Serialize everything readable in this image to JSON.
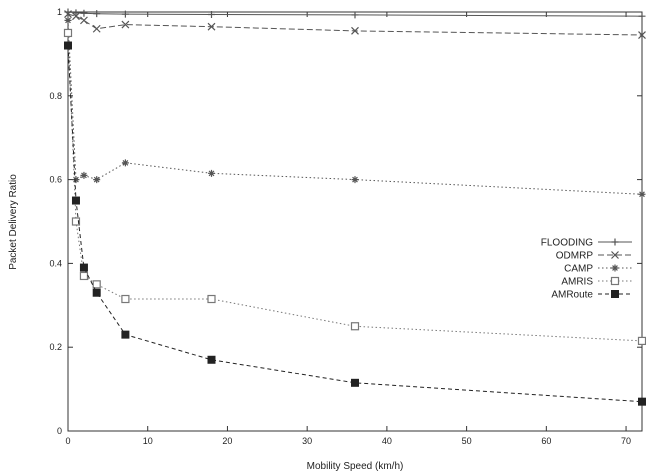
{
  "chart_data": {
    "type": "line",
    "title": "",
    "xlabel": "Mobility Speed (km/h)",
    "ylabel": "Packet Delivery Ratio",
    "xlim": [
      0,
      72
    ],
    "ylim": [
      0,
      1
    ],
    "x_ticks": [
      0,
      10,
      20,
      30,
      40,
      50,
      60,
      70
    ],
    "y_ticks": [
      0,
      0.2,
      0.4,
      0.6,
      0.8,
      1
    ],
    "y_tick_labels": [
      "0",
      "0.2",
      "0.4",
      "0.6",
      "0.8",
      "1"
    ],
    "grid": false,
    "legend_position": "right",
    "series": [
      {
        "name": "FLOODING",
        "marker": "plus",
        "dash": "solid",
        "color": "#555555",
        "x": [
          0,
          1,
          2,
          3.6,
          7.2,
          18,
          36,
          72
        ],
        "y": [
          1.0,
          0.998,
          0.997,
          0.996,
          0.995,
          0.994,
          0.993,
          0.99
        ]
      },
      {
        "name": "ODMRP",
        "marker": "cross",
        "dash": "long-dash",
        "color": "#555555",
        "x": [
          0,
          1,
          2,
          3.6,
          7.2,
          18,
          36,
          72
        ],
        "y": [
          0.995,
          0.99,
          0.98,
          0.96,
          0.97,
          0.965,
          0.955,
          0.945
        ]
      },
      {
        "name": "CAMP",
        "marker": "star",
        "dash": "dotted",
        "color": "#555555",
        "x": [
          0,
          1,
          2,
          3.6,
          7.2,
          18,
          36,
          72
        ],
        "y": [
          0.98,
          0.6,
          0.61,
          0.6,
          0.64,
          0.615,
          0.6,
          0.565
        ]
      },
      {
        "name": "AMRIS",
        "marker": "open-square",
        "dash": "dotted",
        "color": "#777777",
        "x": [
          0,
          1,
          2,
          3.6,
          7.2,
          18,
          36,
          72
        ],
        "y": [
          0.95,
          0.5,
          0.37,
          0.35,
          0.315,
          0.315,
          0.25,
          0.215
        ]
      },
      {
        "name": "AMRoute",
        "marker": "filled-square",
        "dash": "short-dash",
        "color": "#222222",
        "x": [
          0,
          1,
          2,
          3.6,
          7.2,
          18,
          36,
          72
        ],
        "y": [
          0.92,
          0.55,
          0.39,
          0.33,
          0.23,
          0.17,
          0.115,
          0.07
        ]
      }
    ]
  }
}
